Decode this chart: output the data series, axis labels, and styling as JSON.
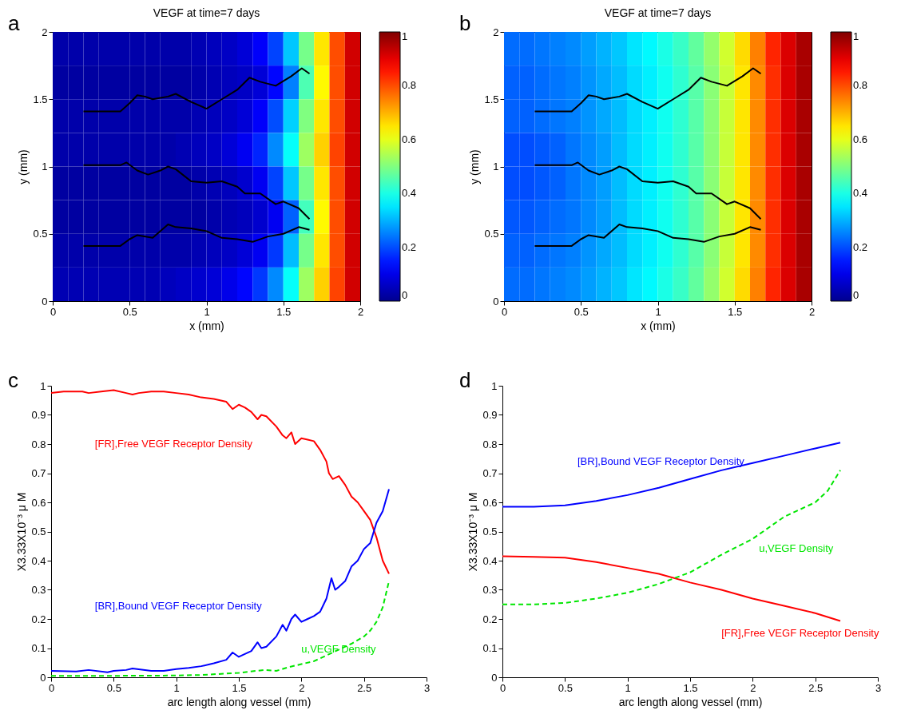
{
  "chart_data": [
    {
      "type": "heatmap",
      "title": "VEGF at time=7 days",
      "xlabel": "x (mm)",
      "ylabel": "y (mm)",
      "annotations": [
        "a"
      ],
      "x": [
        0.05,
        0.15,
        0.25,
        0.35,
        0.45,
        0.55,
        0.65,
        0.75,
        0.85,
        0.95,
        1.05,
        1.15,
        1.25,
        1.35,
        1.45,
        1.55,
        1.65,
        1.75,
        1.85,
        1.95
      ],
      "y": [
        1.875,
        1.625,
        1.375,
        1.125,
        0.875,
        0.625,
        0.375,
        0.125
      ],
      "cells": [
        [
          0.03,
          0.03,
          0.03,
          0.03,
          0.03,
          0.03,
          0.03,
          0.03,
          0.03,
          0.04,
          0.05,
          0.06,
          0.08,
          0.12,
          0.19,
          0.32,
          0.49,
          0.65,
          0.8,
          0.92
        ],
        [
          0.02,
          0.02,
          0.02,
          0.02,
          0.02,
          0.02,
          0.02,
          0.02,
          0.02,
          0.03,
          0.04,
          0.05,
          0.06,
          0.08,
          0.13,
          0.25,
          0.45,
          0.63,
          0.8,
          0.92
        ],
        [
          0.03,
          0.03,
          0.03,
          0.03,
          0.03,
          0.03,
          0.03,
          0.03,
          0.03,
          0.04,
          0.05,
          0.06,
          0.08,
          0.12,
          0.2,
          0.33,
          0.5,
          0.65,
          0.8,
          0.92
        ],
        [
          0.03,
          0.03,
          0.03,
          0.03,
          0.03,
          0.03,
          0.03,
          0.03,
          0.04,
          0.05,
          0.06,
          0.08,
          0.11,
          0.16,
          0.26,
          0.38,
          0.53,
          0.67,
          0.81,
          0.92
        ],
        [
          0.02,
          0.02,
          0.02,
          0.02,
          0.02,
          0.02,
          0.02,
          0.02,
          0.02,
          0.03,
          0.04,
          0.05,
          0.07,
          0.11,
          0.19,
          0.32,
          0.49,
          0.65,
          0.8,
          0.92
        ],
        [
          0.02,
          0.02,
          0.02,
          0.02,
          0.02,
          0.02,
          0.02,
          0.02,
          0.02,
          0.02,
          0.03,
          0.04,
          0.05,
          0.07,
          0.11,
          0.22,
          0.44,
          0.63,
          0.8,
          0.92
        ],
        [
          0.03,
          0.03,
          0.03,
          0.03,
          0.03,
          0.03,
          0.03,
          0.03,
          0.03,
          0.04,
          0.05,
          0.06,
          0.08,
          0.11,
          0.18,
          0.31,
          0.49,
          0.65,
          0.8,
          0.92
        ],
        [
          0.04,
          0.04,
          0.04,
          0.04,
          0.04,
          0.04,
          0.04,
          0.05,
          0.06,
          0.07,
          0.08,
          0.1,
          0.13,
          0.18,
          0.26,
          0.38,
          0.53,
          0.67,
          0.81,
          0.92
        ]
      ],
      "clim": [
        0,
        1
      ],
      "cticks": [
        0,
        0.2,
        0.4,
        0.6,
        0.8,
        1
      ],
      "xlim": [
        0,
        2
      ],
      "xticks": [
        0,
        0.5,
        1,
        1.5,
        2
      ],
      "ylim": [
        0,
        2
      ],
      "yticks": [
        0,
        0.5,
        1,
        1.5,
        2
      ],
      "series": [
        {
          "type": "line",
          "color": "#000000",
          "x": [
            0.2,
            0.44,
            0.5,
            0.55,
            0.6,
            0.65,
            0.75,
            0.8,
            0.9,
            1.0,
            1.1,
            1.2,
            1.28,
            1.35,
            1.45,
            1.55,
            1.62,
            1.67
          ],
          "values": [
            1.41,
            1.41,
            1.47,
            1.53,
            1.52,
            1.5,
            1.52,
            1.54,
            1.48,
            1.43,
            1.5,
            1.57,
            1.66,
            1.63,
            1.6,
            1.67,
            1.73,
            1.69
          ]
        },
        {
          "type": "line",
          "color": "#000000",
          "x": [
            0.2,
            0.44,
            0.48,
            0.55,
            0.62,
            0.7,
            0.75,
            0.8,
            0.9,
            1.0,
            1.1,
            1.2,
            1.25,
            1.35,
            1.45,
            1.5,
            1.6,
            1.67
          ],
          "values": [
            1.01,
            1.01,
            1.03,
            0.97,
            0.94,
            0.97,
            1.0,
            0.98,
            0.89,
            0.88,
            0.89,
            0.85,
            0.8,
            0.8,
            0.72,
            0.74,
            0.69,
            0.61
          ]
        },
        {
          "type": "line",
          "color": "#000000",
          "x": [
            0.2,
            0.44,
            0.5,
            0.55,
            0.65,
            0.75,
            0.8,
            0.9,
            1.0,
            1.1,
            1.2,
            1.3,
            1.4,
            1.5,
            1.6,
            1.67
          ],
          "values": [
            0.41,
            0.41,
            0.46,
            0.49,
            0.47,
            0.57,
            0.55,
            0.54,
            0.52,
            0.47,
            0.46,
            0.44,
            0.48,
            0.5,
            0.55,
            0.53
          ]
        }
      ]
    },
    {
      "type": "heatmap",
      "title": "VEGF at time=7 days",
      "xlabel": "x (mm)",
      "ylabel": "y (mm)",
      "annotations": [
        "b"
      ],
      "x": [
        0.05,
        0.15,
        0.25,
        0.35,
        0.45,
        0.55,
        0.65,
        0.75,
        0.85,
        0.95,
        1.05,
        1.15,
        1.25,
        1.35,
        1.45,
        1.55,
        1.65,
        1.75,
        1.85,
        1.95
      ],
      "y": [
        1.875,
        1.625,
        1.375,
        1.125,
        0.875,
        0.625,
        0.375,
        0.125
      ],
      "cells": [
        [
          0.23,
          0.23,
          0.24,
          0.25,
          0.26,
          0.28,
          0.3,
          0.32,
          0.35,
          0.37,
          0.4,
          0.43,
          0.47,
          0.52,
          0.58,
          0.66,
          0.75,
          0.84,
          0.91,
          0.96
        ],
        [
          0.22,
          0.22,
          0.23,
          0.24,
          0.25,
          0.27,
          0.29,
          0.31,
          0.34,
          0.36,
          0.39,
          0.42,
          0.46,
          0.51,
          0.57,
          0.65,
          0.74,
          0.83,
          0.91,
          0.96
        ],
        [
          0.22,
          0.22,
          0.23,
          0.24,
          0.25,
          0.27,
          0.29,
          0.31,
          0.34,
          0.36,
          0.39,
          0.42,
          0.46,
          0.51,
          0.57,
          0.65,
          0.74,
          0.83,
          0.91,
          0.96
        ],
        [
          0.2,
          0.2,
          0.21,
          0.22,
          0.24,
          0.26,
          0.28,
          0.31,
          0.34,
          0.36,
          0.39,
          0.42,
          0.46,
          0.51,
          0.57,
          0.65,
          0.74,
          0.83,
          0.91,
          0.96
        ],
        [
          0.2,
          0.2,
          0.21,
          0.22,
          0.24,
          0.26,
          0.28,
          0.31,
          0.34,
          0.36,
          0.39,
          0.42,
          0.46,
          0.51,
          0.57,
          0.65,
          0.74,
          0.83,
          0.91,
          0.96
        ],
        [
          0.21,
          0.21,
          0.22,
          0.23,
          0.24,
          0.26,
          0.28,
          0.31,
          0.34,
          0.36,
          0.39,
          0.42,
          0.46,
          0.51,
          0.57,
          0.65,
          0.74,
          0.83,
          0.91,
          0.96
        ],
        [
          0.22,
          0.22,
          0.23,
          0.24,
          0.25,
          0.27,
          0.29,
          0.31,
          0.34,
          0.36,
          0.39,
          0.42,
          0.46,
          0.51,
          0.57,
          0.65,
          0.74,
          0.83,
          0.91,
          0.96
        ],
        [
          0.23,
          0.23,
          0.24,
          0.25,
          0.26,
          0.28,
          0.3,
          0.32,
          0.35,
          0.37,
          0.4,
          0.43,
          0.47,
          0.52,
          0.58,
          0.66,
          0.75,
          0.84,
          0.91,
          0.96
        ]
      ],
      "clim": [
        0,
        1
      ],
      "cticks": [
        0,
        0.2,
        0.4,
        0.6,
        0.8,
        1
      ],
      "xlim": [
        0,
        2
      ],
      "xticks": [
        0,
        0.5,
        1,
        1.5,
        2
      ],
      "ylim": [
        0,
        2
      ],
      "yticks": [
        0,
        0.5,
        1,
        1.5,
        2
      ],
      "series": [
        {
          "type": "line",
          "color": "#000000",
          "x": [
            0.2,
            0.44,
            0.5,
            0.55,
            0.6,
            0.65,
            0.75,
            0.8,
            0.9,
            1.0,
            1.1,
            1.2,
            1.28,
            1.35,
            1.45,
            1.55,
            1.62,
            1.67
          ],
          "values": [
            1.41,
            1.41,
            1.47,
            1.53,
            1.52,
            1.5,
            1.52,
            1.54,
            1.48,
            1.43,
            1.5,
            1.57,
            1.66,
            1.63,
            1.6,
            1.67,
            1.73,
            1.69
          ]
        },
        {
          "type": "line",
          "color": "#000000",
          "x": [
            0.2,
            0.44,
            0.48,
            0.55,
            0.62,
            0.7,
            0.75,
            0.8,
            0.9,
            1.0,
            1.1,
            1.2,
            1.25,
            1.35,
            1.45,
            1.5,
            1.6,
            1.67
          ],
          "values": [
            1.01,
            1.01,
            1.03,
            0.97,
            0.94,
            0.97,
            1.0,
            0.98,
            0.89,
            0.88,
            0.89,
            0.85,
            0.8,
            0.8,
            0.72,
            0.74,
            0.69,
            0.61
          ]
        },
        {
          "type": "line",
          "color": "#000000",
          "x": [
            0.2,
            0.44,
            0.5,
            0.55,
            0.65,
            0.75,
            0.8,
            0.9,
            1.0,
            1.1,
            1.2,
            1.3,
            1.4,
            1.5,
            1.6,
            1.67
          ],
          "values": [
            0.41,
            0.41,
            0.46,
            0.49,
            0.47,
            0.57,
            0.55,
            0.54,
            0.52,
            0.47,
            0.46,
            0.44,
            0.48,
            0.5,
            0.55,
            0.53
          ]
        }
      ]
    },
    {
      "type": "line",
      "xlabel": "arc length along vessel (mm)",
      "ylabel": "X3.33X10⁻³ μ M",
      "annotations": [
        "c"
      ],
      "xlim": [
        0,
        3
      ],
      "xticks": [
        0,
        0.5,
        1,
        1.5,
        2,
        2.5,
        3
      ],
      "ylim": [
        0,
        1
      ],
      "yticks": [
        0,
        0.1,
        0.2,
        0.3,
        0.4,
        0.5,
        0.6,
        0.7,
        0.8,
        0.9,
        1
      ],
      "series": [
        {
          "name": "[FR],Free VEGF Receptor Density",
          "color": "#ff0000",
          "x": [
            0,
            0.1,
            0.25,
            0.3,
            0.4,
            0.5,
            0.6,
            0.65,
            0.7,
            0.8,
            0.9,
            1,
            1.1,
            1.2,
            1.3,
            1.4,
            1.45,
            1.5,
            1.55,
            1.6,
            1.65,
            1.68,
            1.72,
            1.8,
            1.85,
            1.88,
            1.92,
            1.95,
            2.0,
            2.05,
            2.1,
            2.15,
            2.2,
            2.22,
            2.25,
            2.3,
            2.35,
            2.4,
            2.45,
            2.5,
            2.55,
            2.6,
            2.65,
            2.7
          ],
          "values": [
            0.975,
            0.98,
            0.98,
            0.975,
            0.98,
            0.985,
            0.975,
            0.97,
            0.975,
            0.98,
            0.98,
            0.975,
            0.97,
            0.96,
            0.955,
            0.945,
            0.92,
            0.935,
            0.925,
            0.91,
            0.885,
            0.9,
            0.895,
            0.86,
            0.83,
            0.82,
            0.84,
            0.8,
            0.82,
            0.815,
            0.81,
            0.78,
            0.74,
            0.7,
            0.68,
            0.69,
            0.66,
            0.62,
            0.6,
            0.57,
            0.54,
            0.48,
            0.4,
            0.355
          ]
        },
        {
          "name": "[BR],Bound VEGF Receptor Density",
          "color": "#0000ff",
          "x": [
            0,
            0.2,
            0.3,
            0.45,
            0.5,
            0.6,
            0.65,
            0.8,
            0.9,
            1,
            1.1,
            1.2,
            1.3,
            1.4,
            1.45,
            1.5,
            1.6,
            1.65,
            1.68,
            1.72,
            1.8,
            1.85,
            1.88,
            1.92,
            1.95,
            2.0,
            2.05,
            2.1,
            2.15,
            2.2,
            2.24,
            2.27,
            2.3,
            2.35,
            2.4,
            2.45,
            2.5,
            2.55,
            2.6,
            2.65,
            2.7
          ],
          "values": [
            0.022,
            0.02,
            0.025,
            0.017,
            0.022,
            0.025,
            0.03,
            0.022,
            0.022,
            0.028,
            0.032,
            0.038,
            0.048,
            0.06,
            0.085,
            0.07,
            0.09,
            0.12,
            0.1,
            0.105,
            0.14,
            0.18,
            0.16,
            0.2,
            0.215,
            0.19,
            0.2,
            0.21,
            0.225,
            0.27,
            0.34,
            0.3,
            0.31,
            0.33,
            0.38,
            0.4,
            0.44,
            0.46,
            0.53,
            0.57,
            0.645
          ]
        },
        {
          "name": "u,VEGF Density",
          "color": "#00e600",
          "line_style": "dashed",
          "x": [
            0,
            0.5,
            1,
            1.2,
            1.5,
            1.7,
            1.8,
            1.9,
            2.0,
            2.1,
            2.2,
            2.3,
            2.4,
            2.5,
            2.55,
            2.6,
            2.65,
            2.7
          ],
          "values": [
            0.005,
            0.005,
            0.006,
            0.008,
            0.015,
            0.025,
            0.022,
            0.035,
            0.045,
            0.055,
            0.075,
            0.095,
            0.115,
            0.14,
            0.16,
            0.19,
            0.24,
            0.33
          ]
        }
      ]
    },
    {
      "type": "line",
      "xlabel": "arc length along vessel (mm)",
      "ylabel": "X3.33X10⁻³ μ M",
      "annotations": [
        "d"
      ],
      "xlim": [
        0,
        3
      ],
      "xticks": [
        0,
        0.5,
        1,
        1.5,
        2,
        2.5,
        3
      ],
      "ylim": [
        0,
        1
      ],
      "yticks": [
        0,
        0.1,
        0.2,
        0.3,
        0.4,
        0.5,
        0.6,
        0.7,
        0.8,
        0.9,
        1
      ],
      "series": [
        {
          "name": "[FR],Free VEGF Receptor Density",
          "color": "#ff0000",
          "x": [
            0,
            0.25,
            0.5,
            0.75,
            1.0,
            1.25,
            1.5,
            1.75,
            2.0,
            2.25,
            2.5,
            2.7
          ],
          "values": [
            0.415,
            0.413,
            0.41,
            0.395,
            0.375,
            0.355,
            0.325,
            0.3,
            0.27,
            0.245,
            0.22,
            0.193
          ]
        },
        {
          "name": "[BR],Bound VEGF Receptor Density",
          "color": "#0000ff",
          "x": [
            0,
            0.25,
            0.5,
            0.75,
            1.0,
            1.25,
            1.5,
            1.75,
            2.0,
            2.25,
            2.5,
            2.7
          ],
          "values": [
            0.585,
            0.585,
            0.59,
            0.605,
            0.625,
            0.65,
            0.68,
            0.71,
            0.735,
            0.76,
            0.785,
            0.805
          ]
        },
        {
          "name": "u,VEGF Density",
          "color": "#00e600",
          "line_style": "dashed",
          "x": [
            0,
            0.25,
            0.5,
            0.75,
            1.0,
            1.25,
            1.5,
            1.75,
            2.0,
            2.25,
            2.5,
            2.6,
            2.7
          ],
          "values": [
            0.25,
            0.25,
            0.255,
            0.27,
            0.29,
            0.32,
            0.36,
            0.42,
            0.475,
            0.55,
            0.6,
            0.64,
            0.71
          ]
        }
      ]
    }
  ]
}
